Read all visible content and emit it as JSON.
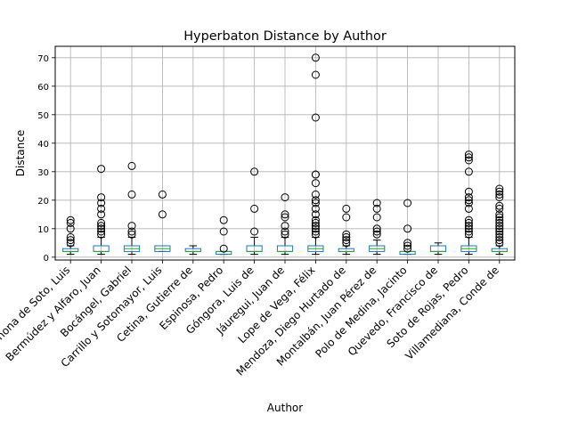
{
  "chart_data": {
    "type": "box",
    "title": "Hyperbaton Distance by Author",
    "xlabel": "Author",
    "ylabel": "Distance",
    "ylim": [
      -1,
      74
    ],
    "yticks": [
      0,
      10,
      20,
      30,
      40,
      50,
      60,
      70
    ],
    "grid": true,
    "categories": [
      "Barahona de Soto, Luis",
      "Bermúdez y Alfaro, Juan",
      "Bocángel, Gabriel",
      "Carrillo y Sotomayor, Luis",
      "Cetina, Gutierre de",
      "Espinosa, Pedro",
      "Góngora, Luis de",
      "Jáuregui, Juan de",
      "Lope de Vega, Félix",
      "Mendoza, Diego Hurtado de",
      "Montalbán, Juan Pérez de",
      "Polo de Medina, Jacinto",
      "Quevedo, Francisco de",
      "Soto de Rojas, Pedro",
      "Villamediana, Conde de"
    ],
    "boxes": [
      {
        "whislo": 1,
        "q1": 2,
        "med": 2,
        "q3": 3,
        "whishi": 4,
        "fliers": [
          5,
          6,
          7,
          10,
          12,
          13
        ]
      },
      {
        "whislo": 1,
        "q1": 2,
        "med": 2,
        "q3": 4,
        "whishi": 7,
        "fliers": [
          8,
          9,
          10,
          11,
          12,
          15,
          17,
          19,
          21,
          31
        ]
      },
      {
        "whislo": 1,
        "q1": 2,
        "med": 3,
        "q3": 4,
        "whishi": 7,
        "fliers": [
          8,
          9,
          11,
          22,
          32
        ]
      },
      {
        "whislo": 2,
        "q1": 2,
        "med": 3,
        "q3": 4,
        "whishi": 4,
        "fliers": [
          15,
          22
        ]
      },
      {
        "whislo": 1,
        "q1": 2,
        "med": 2,
        "q3": 3,
        "whishi": 4,
        "fliers": []
      },
      {
        "whislo": 1,
        "q1": 1,
        "med": 2,
        "q3": 2,
        "whishi": 2,
        "fliers": [
          3,
          9,
          13
        ]
      },
      {
        "whislo": 1,
        "q1": 2,
        "med": 2,
        "q3": 4,
        "whishi": 7,
        "fliers": [
          9,
          17,
          30
        ]
      },
      {
        "whislo": 1,
        "q1": 2,
        "med": 2,
        "q3": 4,
        "whishi": 7,
        "fliers": [
          8,
          9,
          11,
          14,
          15,
          21
        ]
      },
      {
        "whislo": 1,
        "q1": 2,
        "med": 3,
        "q3": 4,
        "whishi": 7,
        "fliers": [
          8,
          9,
          10,
          11,
          12,
          13,
          15,
          17,
          19,
          20,
          22,
          26,
          29,
          29,
          49,
          64,
          70
        ]
      },
      {
        "whislo": 1,
        "q1": 2,
        "med": 2,
        "q3": 3,
        "whishi": 4,
        "fliers": [
          5,
          6,
          7,
          8,
          14,
          17
        ]
      },
      {
        "whislo": 1,
        "q1": 2,
        "med": 3,
        "q3": 4,
        "whishi": 6,
        "fliers": [
          8,
          9,
          10,
          14,
          17,
          19
        ]
      },
      {
        "whislo": 1,
        "q1": 1,
        "med": 2,
        "q3": 2,
        "whishi": 2,
        "fliers": [
          3,
          4,
          5,
          10,
          19
        ]
      },
      {
        "whislo": 1,
        "q1": 2,
        "med": 2,
        "q3": 4,
        "whishi": 5,
        "fliers": []
      },
      {
        "whislo": 1,
        "q1": 2,
        "med": 3,
        "q3": 4,
        "whishi": 7,
        "fliers": [
          8,
          9,
          10,
          11,
          12,
          13,
          17,
          19,
          20,
          21,
          23,
          30,
          34,
          35,
          36
        ]
      },
      {
        "whislo": 1,
        "q1": 2,
        "med": 2,
        "q3": 3,
        "whishi": 4,
        "fliers": [
          5,
          6,
          7,
          8,
          9,
          10,
          11,
          12,
          13,
          14,
          15,
          17,
          18,
          21,
          22,
          23,
          24
        ]
      }
    ],
    "colors": {
      "box": "#1f77b4",
      "median": "#2ca02c",
      "flier": "#000000",
      "whisker": "#000000",
      "grid": "#b0b0b0"
    }
  }
}
